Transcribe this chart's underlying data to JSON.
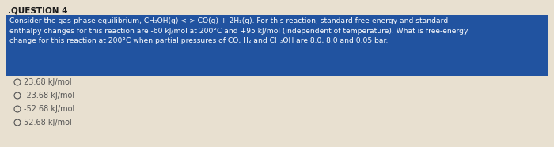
{
  "title": ".QUESTION 4",
  "question_text": "Consider the gas-phase equilibrium, CH₃OH(g) <-> CO(g) + 2H₂(g). For this reaction, standard free-energy and standard\nenthalpy changes for this reaction are -60 kJ/mol at 200°C and +95 kJ/mol (independent of temperature). What is free-energy\nchange for this reaction at 200°C when partial pressures of CO, H₂ and CH₃OH are 8.0, 8.0 and 0.05 bar.",
  "options": [
    "23.68 kJ/mol",
    "-23.68 kJ/mol",
    "-52.68 kJ/mol",
    "52.68 kJ/mol"
  ],
  "question_box_color": "#2153a0",
  "text_color_white": "#ffffff",
  "page_bg": "#e8e0d0",
  "title_color": "#1a1a1a",
  "option_text_color": "#555555"
}
